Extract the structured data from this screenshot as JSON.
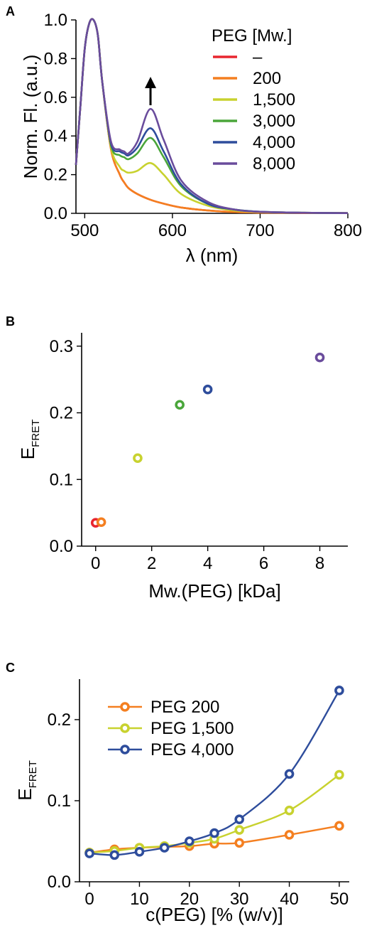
{
  "panels": {
    "a": {
      "letter": "A"
    },
    "b": {
      "letter": "B"
    },
    "c": {
      "letter": "C"
    }
  },
  "chart_data": [
    {
      "type": "line",
      "panel": "A",
      "xlabel": "λ (nm)",
      "ylabel": "Norm. Fl. (a.u.)",
      "xlim": [
        490,
        800
      ],
      "ylim": [
        0,
        1.0
      ],
      "xticks": [
        "500",
        "600",
        "700",
        "800"
      ],
      "yticks": [
        "0.0",
        "0.2",
        "0.4",
        "0.6",
        "0.8",
        "1.0"
      ],
      "xtick_values": [
        500,
        600,
        700,
        800
      ],
      "ytick_values": [
        0,
        0.2,
        0.4,
        0.6,
        0.8,
        1.0
      ],
      "legend": {
        "title": "PEG [Mw.]",
        "placement": "top-right"
      },
      "annotation": "upward arrow above the 575 nm peak",
      "x": [
        490,
        495,
        500,
        505,
        510,
        515,
        520,
        530,
        540,
        545,
        550,
        560,
        575,
        590,
        610,
        640,
        670,
        700,
        750,
        800
      ],
      "series": [
        {
          "name": "–",
          "color": "#e8262f",
          "values": [
            0.25,
            0.55,
            0.85,
            0.98,
            1.0,
            0.92,
            0.68,
            0.33,
            0.2,
            0.16,
            0.13,
            0.1,
            0.07,
            0.05,
            0.03,
            0.015,
            0.007,
            0.004,
            0.002,
            0.001
          ]
        },
        {
          "name": "200",
          "color": "#f47f20",
          "values": [
            0.25,
            0.55,
            0.85,
            0.98,
            1.0,
            0.92,
            0.68,
            0.33,
            0.2,
            0.16,
            0.13,
            0.1,
            0.07,
            0.05,
            0.03,
            0.015,
            0.007,
            0.004,
            0.002,
            0.001
          ]
        },
        {
          "name": "1,500",
          "color": "#c8d22f",
          "values": [
            0.25,
            0.55,
            0.85,
            0.98,
            1.0,
            0.92,
            0.68,
            0.34,
            0.24,
            0.22,
            0.21,
            0.22,
            0.26,
            0.2,
            0.1,
            0.04,
            0.015,
            0.007,
            0.003,
            0.001
          ]
        },
        {
          "name": "3,000",
          "color": "#4aa63a",
          "values": [
            0.25,
            0.55,
            0.85,
            0.98,
            1.0,
            0.92,
            0.68,
            0.35,
            0.3,
            0.29,
            0.28,
            0.31,
            0.39,
            0.29,
            0.14,
            0.05,
            0.02,
            0.008,
            0.003,
            0.001
          ]
        },
        {
          "name": "4,000",
          "color": "#2e4d9c",
          "values": [
            0.25,
            0.55,
            0.85,
            0.98,
            1.0,
            0.92,
            0.68,
            0.36,
            0.32,
            0.31,
            0.3,
            0.34,
            0.44,
            0.32,
            0.15,
            0.05,
            0.02,
            0.008,
            0.003,
            0.001
          ]
        },
        {
          "name": "8,000",
          "color": "#6a4c9c",
          "values": [
            0.25,
            0.55,
            0.85,
            0.98,
            1.0,
            0.92,
            0.68,
            0.37,
            0.33,
            0.32,
            0.31,
            0.37,
            0.54,
            0.38,
            0.17,
            0.06,
            0.02,
            0.008,
            0.003,
            0.001
          ]
        }
      ]
    },
    {
      "type": "scatter",
      "panel": "B",
      "xlabel": "Mw.(PEG) [kDa]",
      "ylabel_main": "E",
      "ylabel_sub": "FRET",
      "xlim": [
        -0.5,
        9
      ],
      "ylim": [
        0,
        0.32
      ],
      "xticks": [
        "0",
        "2",
        "4",
        "6",
        "8"
      ],
      "yticks": [
        "0.0",
        "0.1",
        "0.2",
        "0.3"
      ],
      "xtick_values": [
        0,
        2,
        4,
        6,
        8
      ],
      "ytick_values": [
        0,
        0.1,
        0.2,
        0.3
      ],
      "points": [
        {
          "x": 0,
          "y": 0.035,
          "color": "#e8262f"
        },
        {
          "x": 0.2,
          "y": 0.036,
          "color": "#f47f20"
        },
        {
          "x": 1.5,
          "y": 0.132,
          "color": "#c8d22f"
        },
        {
          "x": 3,
          "y": 0.212,
          "color": "#4aa63a"
        },
        {
          "x": 4,
          "y": 0.235,
          "color": "#2e4d9c"
        },
        {
          "x": 8,
          "y": 0.283,
          "color": "#6a4c9c"
        }
      ]
    },
    {
      "type": "line",
      "panel": "C",
      "xlabel": "c(PEG) [% (w/v)]",
      "ylabel_main": "E",
      "ylabel_sub": "FRET",
      "xlim": [
        -2,
        52
      ],
      "ylim": [
        0,
        0.25
      ],
      "xticks": [
        "0",
        "10",
        "20",
        "30",
        "40",
        "50"
      ],
      "yticks": [
        "0.0",
        "0.1",
        "0.2"
      ],
      "xtick_values": [
        0,
        10,
        20,
        30,
        40,
        50
      ],
      "ytick_values": [
        0,
        0.1,
        0.2
      ],
      "legend": {
        "placement": "top-left"
      },
      "series": [
        {
          "name": "PEG 200",
          "color": "#f47f20",
          "x": [
            0,
            5,
            10,
            15,
            20,
            25,
            30,
            40,
            50
          ],
          "values": [
            0.036,
            0.04,
            0.042,
            0.043,
            0.044,
            0.047,
            0.048,
            0.058,
            0.069
          ]
        },
        {
          "name": "PEG 1,500",
          "color": "#c8d22f",
          "x": [
            0,
            5,
            10,
            15,
            20,
            25,
            30,
            40,
            50
          ],
          "values": [
            0.036,
            0.038,
            0.042,
            0.044,
            0.048,
            0.053,
            0.064,
            0.088,
            0.132
          ]
        },
        {
          "name": "PEG 4,000",
          "color": "#2e4d9c",
          "x": [
            0,
            5,
            10,
            15,
            20,
            25,
            30,
            40,
            50
          ],
          "values": [
            0.035,
            0.033,
            0.037,
            0.042,
            0.05,
            0.06,
            0.077,
            0.133,
            0.236
          ]
        }
      ]
    }
  ]
}
